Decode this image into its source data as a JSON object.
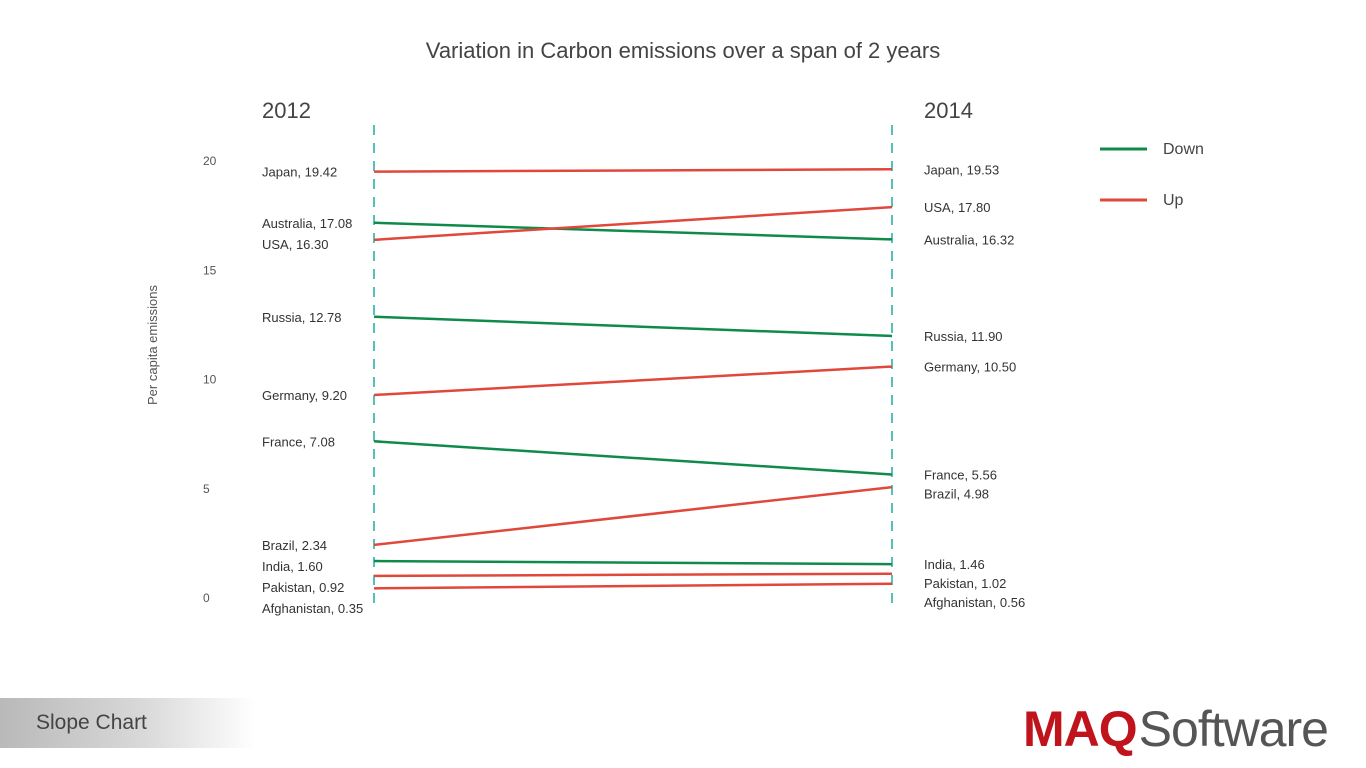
{
  "chart_data": {
    "type": "slope",
    "title": "Variation in Carbon emissions over a span of 2 years",
    "ylabel": "Per capita emissions",
    "ylim": [
      0,
      20
    ],
    "yticks": [
      0,
      5,
      10,
      15,
      20
    ],
    "periods": [
      "2012",
      "2014"
    ],
    "legend": [
      {
        "key": "down",
        "label": "Down",
        "color": "#0f8a4a"
      },
      {
        "key": "up",
        "label": "Up",
        "color": "#e0483c"
      }
    ],
    "series": [
      {
        "name": "Japan",
        "start": 19.42,
        "end": 19.53,
        "start_label": "Japan, 19.42",
        "end_label": "Japan, 19.53",
        "trend": "up"
      },
      {
        "name": "Australia",
        "start": 17.08,
        "end": 16.32,
        "start_label": "Australia, 17.08",
        "end_label": "Australia, 16.32",
        "trend": "down"
      },
      {
        "name": "USA",
        "start": 16.3,
        "end": 17.8,
        "start_label": "USA, 16.30",
        "end_label": "USA, 17.80",
        "trend": "up"
      },
      {
        "name": "Russia",
        "start": 12.78,
        "end": 11.9,
        "start_label": "Russia, 12.78",
        "end_label": "Russia, 11.90",
        "trend": "down"
      },
      {
        "name": "Germany",
        "start": 9.2,
        "end": 10.5,
        "start_label": "Germany, 9.20",
        "end_label": "Germany, 10.50",
        "trend": "up"
      },
      {
        "name": "France",
        "start": 7.08,
        "end": 5.56,
        "start_label": "France, 7.08",
        "end_label": "France, 5.56",
        "trend": "down"
      },
      {
        "name": "Brazil",
        "start": 2.34,
        "end": 4.98,
        "start_label": "Brazil, 2.34",
        "end_label": "Brazil, 4.98",
        "trend": "up"
      },
      {
        "name": "India",
        "start": 1.6,
        "end": 1.46,
        "start_label": "India, 1.60",
        "end_label": "India, 1.46",
        "trend": "down"
      },
      {
        "name": "Pakistan",
        "start": 0.92,
        "end": 1.02,
        "start_label": "Pakistan, 0.92",
        "end_label": "Pakistan, 1.02",
        "trend": "up"
      },
      {
        "name": "Afghanistan",
        "start": 0.35,
        "end": 0.56,
        "start_label": "Afghanistan, 0.35",
        "end_label": "Afghanistan, 0.56",
        "trend": "up"
      }
    ]
  },
  "footer": {
    "label": "Slope Chart"
  },
  "brand": {
    "maq": "MAQ",
    "software": "Software"
  },
  "colors": {
    "axis_dash": "#55c1b9"
  }
}
